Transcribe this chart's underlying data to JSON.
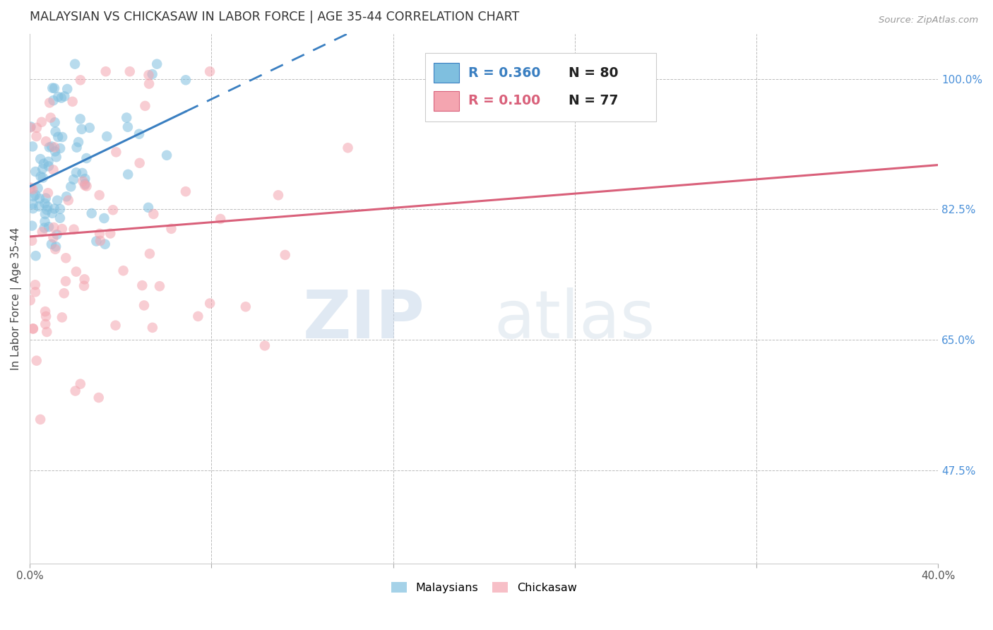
{
  "title": "MALAYSIAN VS CHICKASAW IN LABOR FORCE | AGE 35-44 CORRELATION CHART",
  "source": "Source: ZipAtlas.com",
  "ylabel": "In Labor Force | Age 35-44",
  "xlim": [
    0.0,
    0.4
  ],
  "ylim": [
    0.35,
    1.06
  ],
  "ytick_labels_right": [
    "100.0%",
    "82.5%",
    "65.0%",
    "47.5%"
  ],
  "ytick_values_right": [
    1.0,
    0.825,
    0.65,
    0.475
  ],
  "legend_R_blue": "0.360",
  "legend_N_blue": "80",
  "legend_R_pink": "0.100",
  "legend_N_pink": "77",
  "blue_color": "#7fbfdf",
  "blue_line_color": "#3a7fc1",
  "pink_color": "#f4a5b0",
  "pink_line_color": "#d9607a",
  "watermark_zip": "ZIP",
  "watermark_atlas": "atlas",
  "background_color": "#ffffff",
  "grid_color": "#bbbbbb",
  "title_color": "#333333",
  "right_label_color": "#4a90d9",
  "source_color": "#999999"
}
